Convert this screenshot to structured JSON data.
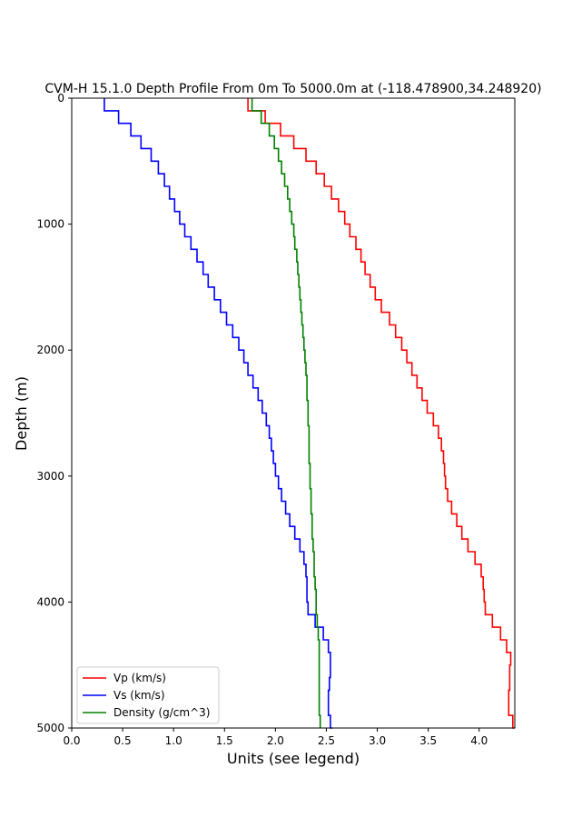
{
  "chart_data": {
    "type": "line",
    "title": "CVM-H 15.1.0 Depth Profile From 0m To 5000.0m at (-118.478900,34.248920)",
    "xlabel": "Units (see legend)",
    "ylabel": "Depth (m)",
    "xlim": [
      0.0,
      4.35
    ],
    "ylim": [
      5000,
      0
    ],
    "y_inverted": true,
    "xticks": [
      "0.0",
      "0.5",
      "1.0",
      "1.5",
      "2.0",
      "2.5",
      "3.0",
      "3.5",
      "4.0"
    ],
    "xtick_values": [
      0.0,
      0.5,
      1.0,
      1.5,
      2.0,
      2.5,
      3.0,
      3.5,
      4.0
    ],
    "yticks": [
      "0",
      "1000",
      "2000",
      "3000",
      "4000",
      "5000"
    ],
    "ytick_values": [
      0,
      1000,
      2000,
      3000,
      4000,
      5000
    ],
    "grid": false,
    "legend_position": "bottom-left",
    "depth": [
      0,
      100,
      200,
      300,
      400,
      500,
      600,
      700,
      800,
      900,
      1000,
      1100,
      1200,
      1300,
      1400,
      1500,
      1600,
      1700,
      1800,
      1900,
      2000,
      2100,
      2200,
      2300,
      2400,
      2500,
      2600,
      2700,
      2800,
      2900,
      3000,
      3100,
      3200,
      3300,
      3400,
      3500,
      3600,
      3700,
      3800,
      3900,
      4000,
      4100,
      4200,
      4300,
      4400,
      4500,
      4600,
      4700,
      4800,
      4900,
      5000
    ],
    "series": [
      {
        "name": "Vp (km/s)",
        "color": "#ff0000",
        "values": [
          1.73,
          1.9,
          2.05,
          2.18,
          2.3,
          2.4,
          2.48,
          2.55,
          2.62,
          2.68,
          2.73,
          2.79,
          2.84,
          2.88,
          2.93,
          2.98,
          3.04,
          3.12,
          3.18,
          3.24,
          3.29,
          3.34,
          3.39,
          3.44,
          3.49,
          3.55,
          3.6,
          3.63,
          3.65,
          3.66,
          3.67,
          3.69,
          3.73,
          3.78,
          3.83,
          3.89,
          3.96,
          4.02,
          4.04,
          4.05,
          4.06,
          4.13,
          4.21,
          4.27,
          4.31,
          4.3,
          4.3,
          4.29,
          4.29,
          4.33,
          4.35
        ]
      },
      {
        "name": "Vs (km/s)",
        "color": "#0000ff",
        "values": [
          0.32,
          0.46,
          0.58,
          0.68,
          0.78,
          0.85,
          0.91,
          0.96,
          1.01,
          1.06,
          1.11,
          1.17,
          1.23,
          1.29,
          1.34,
          1.4,
          1.46,
          1.52,
          1.58,
          1.64,
          1.69,
          1.73,
          1.78,
          1.83,
          1.87,
          1.91,
          1.94,
          1.96,
          1.98,
          2.0,
          2.03,
          2.06,
          2.1,
          2.14,
          2.19,
          2.24,
          2.28,
          2.3,
          2.31,
          2.31,
          2.32,
          2.39,
          2.47,
          2.52,
          2.54,
          2.54,
          2.53,
          2.52,
          2.52,
          2.54,
          2.56
        ]
      },
      {
        "name": "Density (g/cm^3)",
        "color": "#008000",
        "values": [
          1.77,
          1.86,
          1.94,
          1.99,
          2.03,
          2.06,
          2.09,
          2.12,
          2.14,
          2.16,
          2.18,
          2.19,
          2.21,
          2.22,
          2.23,
          2.24,
          2.25,
          2.26,
          2.27,
          2.28,
          2.29,
          2.3,
          2.31,
          2.31,
          2.32,
          2.32,
          2.33,
          2.33,
          2.33,
          2.34,
          2.34,
          2.35,
          2.35,
          2.36,
          2.36,
          2.37,
          2.38,
          2.38,
          2.39,
          2.4,
          2.4,
          2.41,
          2.42,
          2.43,
          2.43,
          2.43,
          2.43,
          2.43,
          2.43,
          2.44,
          2.44
        ]
      }
    ]
  }
}
